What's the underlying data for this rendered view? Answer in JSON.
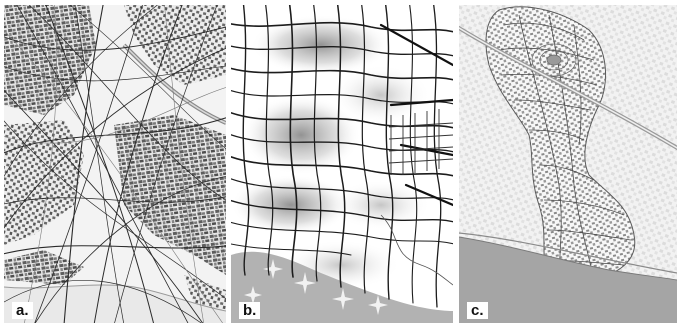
{
  "panels": [
    {
      "label": "a."
    },
    {
      "label": "b."
    },
    {
      "label": "c."
    }
  ],
  "colors": {
    "background": "#ffffff",
    "sea": "#a8a8a8",
    "ink": "#1a1a1a",
    "map_gray": "#6d6d6d",
    "label": "#111111"
  }
}
